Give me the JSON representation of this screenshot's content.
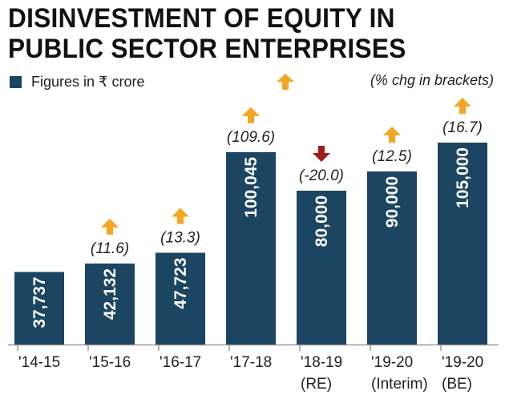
{
  "colors": {
    "bar": "#1b4560",
    "up_arrow": "#f5a623",
    "down_arrow": "#9c1c1c",
    "axis": "#9a9a9a"
  },
  "header": {
    "title_line1": "DISINVESTMENT OF EQUITY IN",
    "title_line2": "PUBLIC SECTOR ENTERPRISES"
  },
  "legend": {
    "label": "Figures in ₹ crore",
    "note": "(% chg in brackets)",
    "up_icon": "up-arrow-icon"
  },
  "chart_data": {
    "type": "bar",
    "title": "DISINVESTMENT OF EQUITY IN PUBLIC SECTOR ENTERPRISES",
    "unit": "Figures in ₹ crore",
    "categories": [
      [
        "'14-15"
      ],
      [
        "'15-16"
      ],
      [
        "'16-17"
      ],
      [
        "'17-18"
      ],
      [
        "'18-19",
        "(RE)"
      ],
      [
        "'19-20",
        "(Interim)"
      ],
      [
        "'19-20",
        "(BE)"
      ]
    ],
    "values": [
      37737,
      42132,
      47723,
      100045,
      80000,
      90000,
      105000
    ],
    "value_labels": [
      "37,737",
      "42,132",
      "47,723",
      "100,045",
      "80,000",
      "90,000",
      "105,000"
    ],
    "pct_change": [
      null,
      11.6,
      13.3,
      109.6,
      -20.0,
      12.5,
      16.7
    ],
    "pct_change_labels": [
      null,
      "(11.6)",
      "(13.3)",
      "(109.6)",
      "(-20.0)",
      "(12.5)",
      "(16.7)"
    ],
    "direction": [
      null,
      "up",
      "up",
      "up",
      "down",
      "up",
      "up"
    ],
    "ylim": [
      0,
      105000
    ],
    "grid": false,
    "legend_position": "top-left"
  }
}
